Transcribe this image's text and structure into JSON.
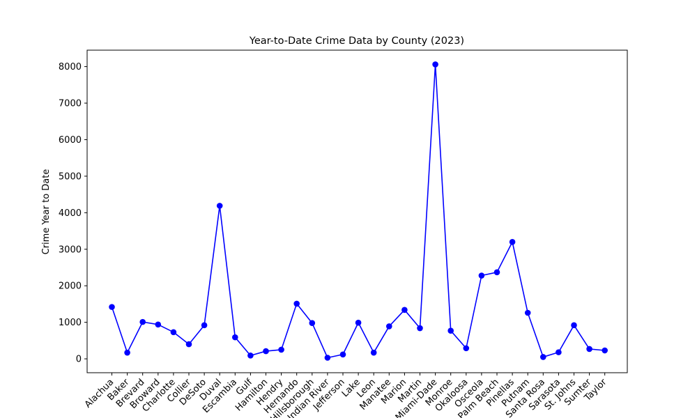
{
  "chart_data": {
    "type": "line",
    "title": "Year-to-Date Crime Data by County (2023)",
    "xlabel": "",
    "ylabel": "Crime Year to Date",
    "categories": [
      "Alachua",
      "Baker",
      "Brevard",
      "Broward",
      "Charlotte",
      "Collier",
      "DeSoto",
      "Duval",
      "Escambia",
      "Gulf",
      "Hamilton",
      "Hendry",
      "Hernando",
      "Hillsborough",
      "Indian River",
      "Jefferson",
      "Lake",
      "Leon",
      "Manatee",
      "Marion",
      "Martin",
      "Miami-Dade",
      "Monroe",
      "Okaloosa",
      "Osceola",
      "Palm Beach",
      "Pinellas",
      "Putnam",
      "Santa Rosa",
      "Sarasota",
      "St. Johns",
      "Sumter",
      "Taylor"
    ],
    "series": [
      {
        "values": [
          1420,
          170,
          1010,
          940,
          730,
          400,
          920,
          4190,
          590,
          90,
          210,
          250,
          1510,
          980,
          30,
          120,
          990,
          170,
          890,
          1340,
          840,
          8060,
          770,
          290,
          2280,
          2370,
          3200,
          1260,
          50,
          180,
          920,
          270,
          230
        ],
        "color": "#0000ff",
        "marker": "circle"
      }
    ],
    "yticks": [
      0,
      1000,
      2000,
      3000,
      4000,
      5000,
      6000,
      7000,
      8000
    ],
    "ylim": [
      -380,
      8450
    ],
    "grid": false,
    "legend": "none"
  }
}
